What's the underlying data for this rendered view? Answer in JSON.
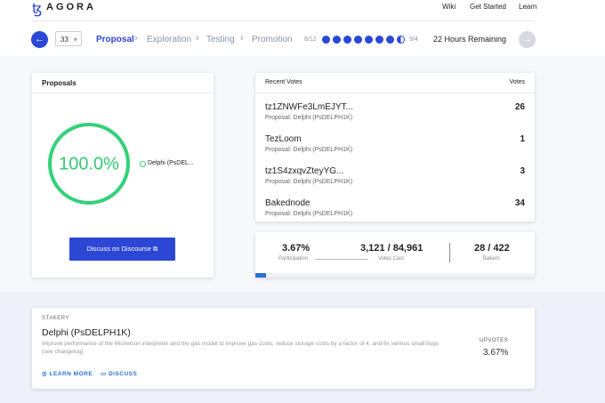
{
  "header": {
    "logo": "AGORA",
    "nav": [
      "Wiki",
      "Get Started",
      "Learn"
    ]
  },
  "period": {
    "select": "33",
    "stages": [
      "Proposal",
      "Exploration",
      "Testing",
      "Promotion"
    ],
    "start": "8/12",
    "end": "9/4",
    "remaining": "22 Hours Remaining"
  },
  "proposals": {
    "title": "Proposals",
    "donut": {
      "value": 100,
      "label": "100.0%"
    },
    "legend": "Delphi (PsDEL...",
    "button": "Discuss on Discourse"
  },
  "votes": {
    "title": "Recent Votes",
    "column": "Votes",
    "rows": [
      {
        "name": "tz1ZNWFe3LmEJYT...",
        "proposal": "Proposal: Delphi (PsDELPH1K)",
        "votes": 26
      },
      {
        "name": "TezLoom",
        "proposal": "Proposal: Delphi (PsDELPH1K)",
        "votes": 1
      },
      {
        "name": "tz1S4zxqvZteyYG...",
        "proposal": "Proposal: Delphi (PsDELPH1K)",
        "votes": 3
      },
      {
        "name": "Bakednode",
        "proposal": "Proposal: Delphi (PsDELPH1K)",
        "votes": 34
      }
    ]
  },
  "stats": {
    "participation": {
      "value": 3.67,
      "label": "3.67%"
    },
    "participation_label": "Participation",
    "votes_cast": "3,121 / 84,961",
    "votes_cast_label": "Votes Cast",
    "bakers": "28 / 422",
    "bakers_label": "Bakers"
  },
  "proposal_card": {
    "proposer": "STAKERY",
    "title": "Delphi (PsDELPH1K)",
    "description": "Improve performance of the Michelson interpreter and the gas model to improve gas costs, reduce storage costs by a factor of 4, and fix various small bugs",
    "see": "(see changelog)",
    "learn_more": "LEARN MORE",
    "discuss": "DISCUSS",
    "upvotes_label": "UPVOTES",
    "upvotes": "3.67%"
  }
}
